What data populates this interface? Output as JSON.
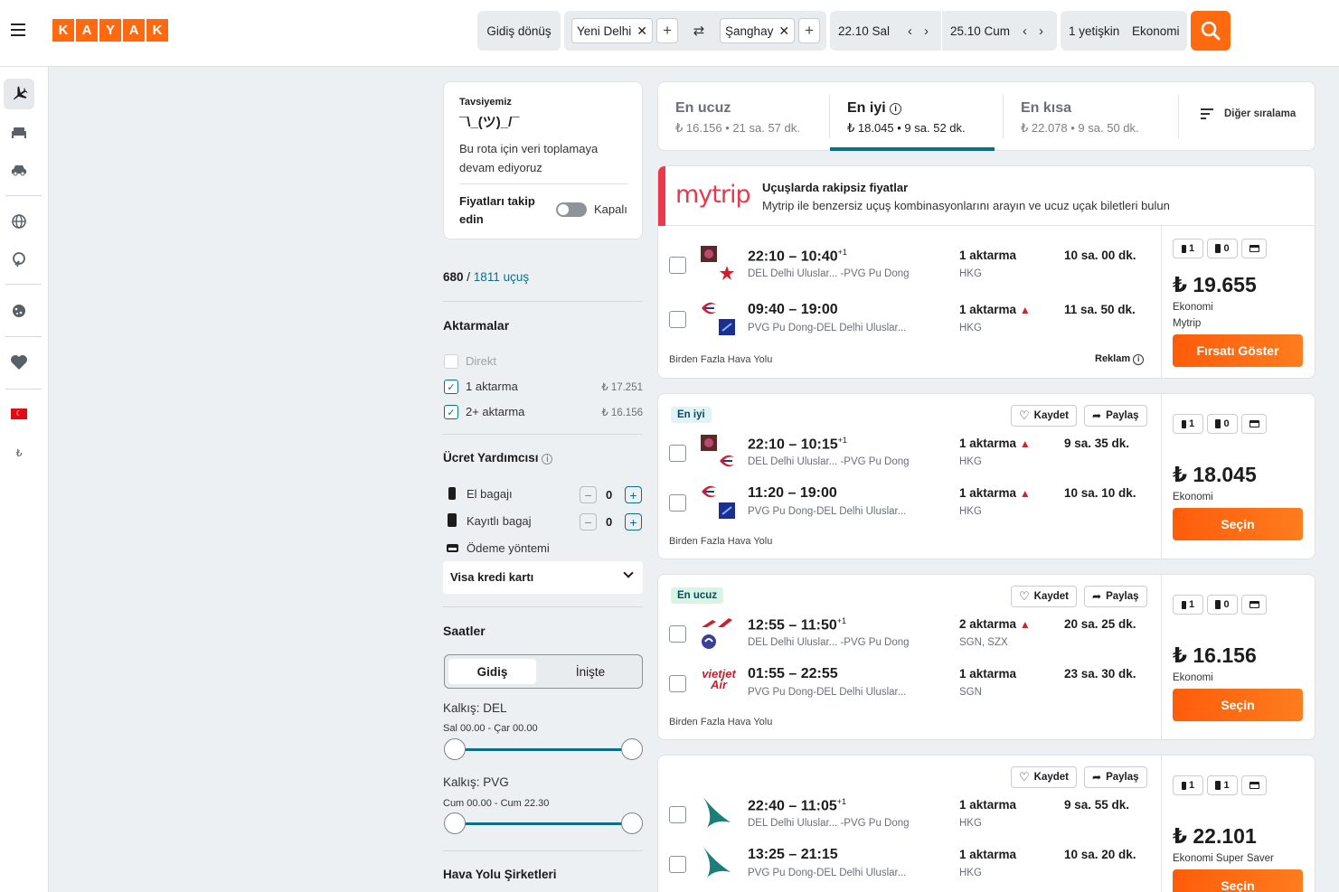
{
  "header": {
    "brand_letters": [
      "K",
      "A",
      "Y",
      "A",
      "K"
    ],
    "trip_type": "Gidiş dönüş",
    "origin": "Yeni Delhi",
    "destination": "Şanghay",
    "depart_date": "22.10 Sal",
    "return_date": "25.10 Cum",
    "travelers": "1 yetişkin",
    "cabin": "Ekonomi"
  },
  "rail": {
    "items": [
      "plane-icon",
      "hotel-icon",
      "car-icon",
      "globe-icon",
      "trips-icon",
      "cookie-icon",
      "heart-icon",
      "flag-tr-icon",
      "currency-icon"
    ],
    "currency_symbol": "₺"
  },
  "recommend": {
    "label": "Tavsiyemiz",
    "shrug": "¯\\_(ツ)_/¯",
    "text": "Bu rota için veri toplamaya devam ediyoruz",
    "track_label": "Fiyatları takip edin",
    "toggle_state": "Kapalı"
  },
  "count": {
    "shown": "680",
    "sep": " / ",
    "total": "1811 uçuş"
  },
  "stops_filter": {
    "title": "Aktarmalar",
    "options": [
      {
        "label": "Direkt",
        "price": "",
        "checked": false
      },
      {
        "label": "1 aktarma",
        "price": "₺ 17.251",
        "checked": true
      },
      {
        "label": "2+ aktarma",
        "price": "₺ 16.156",
        "checked": true
      }
    ]
  },
  "fee_helper": {
    "title": "Ücret Yardımcısı",
    "carry_on": {
      "label": "El bagajı",
      "value": "0"
    },
    "checked": {
      "label": "Kayıtlı bagaj",
      "value": "0"
    },
    "payment_label": "Ödeme yöntemi",
    "payment_value": "Visa kredi kartı"
  },
  "times": {
    "title": "Saatler",
    "tabs": [
      "Gidiş",
      "İnişte"
    ],
    "dep1_label": "Kalkış: DEL",
    "dep1_range": "Sal 00.00 - Çar 00.00",
    "dep2_label": "Kalkış: PVG",
    "dep2_range": "Cum 00.00 - Cum 22.30",
    "airlines_title": "Hava Yolu Şirketleri"
  },
  "sort": {
    "cheapest": {
      "title": "En ucuz",
      "sub": "₺ 16.156 • 21 sa. 57 dk."
    },
    "best": {
      "title": "En iyi",
      "sub": "₺ 18.045 • 9 sa. 52 dk."
    },
    "shortest": {
      "title": "En kısa",
      "sub": "₺ 22.078 • 9 sa. 50 dk."
    },
    "other": "Diğer sıralama"
  },
  "ad_banner": {
    "brand": "mytrip",
    "title": "Uçuşlarda rakipsiz fiyatlar",
    "text": "Mytrip ile benzersiz uçuş kombinasyonlarını arayın ve ucuz uçak biletleri bulun"
  },
  "labels": {
    "save": "Kaydet",
    "share": "Paylaş",
    "multi": "Birden Fazla Hava Yolu",
    "ad": "Reklam"
  },
  "results": [
    {
      "badge": "",
      "legs": [
        {
          "time": "22:10 – 10:40",
          "plus": "+1",
          "route": "DEL Delhi Uluslar... -PVG Pu Dong",
          "stops": "1 aktarma",
          "warn": false,
          "via": "HKG",
          "duration": "10 sa. 00 dk."
        },
        {
          "time": "09:40 – 19:00",
          "plus": "",
          "route": "PVG Pu Dong-DEL Delhi Uluslar...",
          "stops": "1 aktarma",
          "warn": true,
          "via": "HKG",
          "duration": "11 sa. 50 dk."
        }
      ],
      "bags": [
        "1",
        "0"
      ],
      "price": "₺ 19.655",
      "cabin": "Ekonomi",
      "provider": "Mytrip",
      "button": "Fırsatı Göster"
    },
    {
      "badge": "En iyi",
      "legs": [
        {
          "time": "22:10 – 10:15",
          "plus": "+1",
          "route": "DEL Delhi Uluslar... -PVG Pu Dong",
          "stops": "1 aktarma",
          "warn": true,
          "via": "HKG",
          "duration": "9 sa. 35 dk."
        },
        {
          "time": "11:20 – 19:00",
          "plus": "",
          "route": "PVG Pu Dong-DEL Delhi Uluslar...",
          "stops": "1 aktarma",
          "warn": true,
          "via": "HKG",
          "duration": "10 sa. 10 dk."
        }
      ],
      "bags": [
        "1",
        "0"
      ],
      "price": "₺ 18.045",
      "cabin": "Ekonomi",
      "button": "Seçin"
    },
    {
      "badge": "En ucuz",
      "legs": [
        {
          "time": "12:55 – 11:50",
          "plus": "+1",
          "route": "DEL Delhi Uluslar... -PVG Pu Dong",
          "stops": "2 aktarma",
          "warn": true,
          "via": "SGN, SZX",
          "duration": "20 sa. 25 dk."
        },
        {
          "time": "01:55 – 22:55",
          "plus": "",
          "route": "PVG Pu Dong-DEL Delhi Uluslar...",
          "stops": "1 aktarma",
          "warn": false,
          "via": "SGN",
          "duration": "23 sa. 30 dk."
        }
      ],
      "bags": [
        "1",
        "0"
      ],
      "price": "₺ 16.156",
      "cabin": "Ekonomi",
      "button": "Seçin",
      "vietjet_text": "vietjet Air"
    },
    {
      "badge": "",
      "legs": [
        {
          "time": "22:40 – 11:05",
          "plus": "+1",
          "route": "DEL Delhi Uluslar... -PVG Pu Dong",
          "stops": "1 aktarma",
          "warn": false,
          "via": "HKG",
          "duration": "9 sa. 55 dk."
        },
        {
          "time": "13:25 – 21:15",
          "plus": "",
          "route": "PVG Pu Dong-DEL Delhi Uluslar...",
          "stops": "1 aktarma",
          "warn": false,
          "via": "HKG",
          "duration": "10 sa. 20 dk."
        }
      ],
      "bags": [
        "1",
        "1"
      ],
      "price": "₺ 22.101",
      "cabin": "Ekonomi Super Saver",
      "button": "Seçin"
    }
  ],
  "colors": {
    "brand": "#ff690f",
    "accent": "#0b6f8a",
    "badge_best": "#e1f3f7",
    "badge_cheap": "#d8f4e4",
    "warn": "#d1242f"
  }
}
